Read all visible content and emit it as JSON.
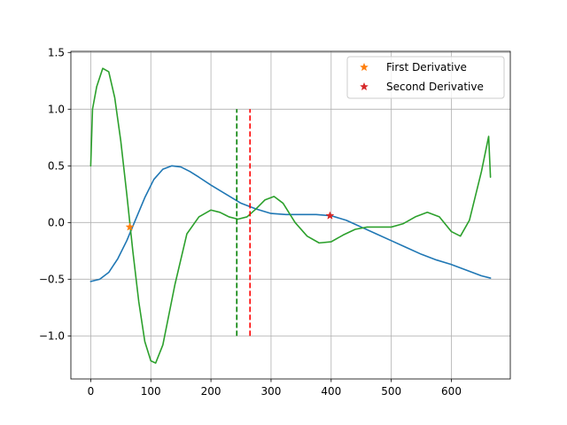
{
  "chart_data": {
    "type": "line",
    "title": "",
    "xlabel": "",
    "ylabel": "",
    "xlim": [
      -33,
      698
    ],
    "ylim": [
      -1.38,
      1.51
    ],
    "xticks": [
      0,
      100,
      200,
      300,
      400,
      500,
      600
    ],
    "yticks": [
      -1.0,
      -0.5,
      0.0,
      0.5,
      1.0,
      1.5
    ],
    "xtick_labels": [
      "0",
      "100",
      "200",
      "300",
      "400",
      "500",
      "600"
    ],
    "ytick_labels": [
      "−1.0",
      "−0.5",
      "0.0",
      "0.5",
      "1.0",
      "1.5"
    ],
    "grid": true,
    "legend_position": "top-right",
    "legend": [
      {
        "label": "First Derivative",
        "marker": "star",
        "color": "#ff7f0e"
      },
      {
        "label": "Second Derivative",
        "marker": "star",
        "color": "#d62728"
      }
    ],
    "series": [
      {
        "color": "#1f77b4",
        "x": [
          0,
          15,
          30,
          45,
          60,
          75,
          90,
          105,
          120,
          135,
          150,
          165,
          180,
          200,
          225,
          250,
          275,
          300,
          325,
          350,
          375,
          400,
          425,
          450,
          475,
          500,
          525,
          550,
          575,
          600,
          625,
          650,
          665
        ],
        "y": [
          -0.52,
          -0.5,
          -0.44,
          -0.32,
          -0.16,
          0.03,
          0.22,
          0.38,
          0.47,
          0.5,
          0.49,
          0.45,
          0.4,
          0.33,
          0.25,
          0.17,
          0.12,
          0.08,
          0.07,
          0.07,
          0.07,
          0.06,
          0.02,
          -0.04,
          -0.1,
          -0.16,
          -0.22,
          -0.28,
          -0.33,
          -0.37,
          -0.42,
          -0.47,
          -0.49
        ]
      },
      {
        "color": "#2ca02c",
        "x": [
          0,
          3,
          10,
          20,
          30,
          40,
          50,
          60,
          70,
          80,
          90,
          100,
          108,
          120,
          140,
          160,
          180,
          200,
          215,
          230,
          245,
          260,
          275,
          290,
          305,
          320,
          340,
          360,
          380,
          400,
          420,
          440,
          460,
          480,
          500,
          520,
          540,
          560,
          580,
          600,
          615,
          630,
          650,
          662,
          665
        ],
        "y": [
          0.5,
          1.0,
          1.2,
          1.36,
          1.33,
          1.1,
          0.72,
          0.25,
          -0.25,
          -0.7,
          -1.05,
          -1.22,
          -1.24,
          -1.08,
          -0.55,
          -0.1,
          0.05,
          0.11,
          0.09,
          0.05,
          0.03,
          0.05,
          0.12,
          0.2,
          0.23,
          0.17,
          0.0,
          -0.12,
          -0.18,
          -0.17,
          -0.11,
          -0.06,
          -0.04,
          -0.04,
          -0.04,
          -0.01,
          0.05,
          0.09,
          0.05,
          -0.08,
          -0.12,
          0.02,
          0.45,
          0.76,
          0.4
        ]
      }
    ],
    "points": [
      {
        "label": "First Derivative",
        "x": 65,
        "y": -0.04,
        "color": "#ff7f0e"
      },
      {
        "label": "Second Derivative",
        "x": 398,
        "y": 0.06,
        "color": "#d62728"
      }
    ],
    "vlines": [
      {
        "x": 243,
        "y0": -1.0,
        "y1": 1.0,
        "color": "#008000"
      },
      {
        "x": 265,
        "y0": -1.0,
        "y1": 1.0,
        "color": "#ff0000"
      }
    ]
  }
}
